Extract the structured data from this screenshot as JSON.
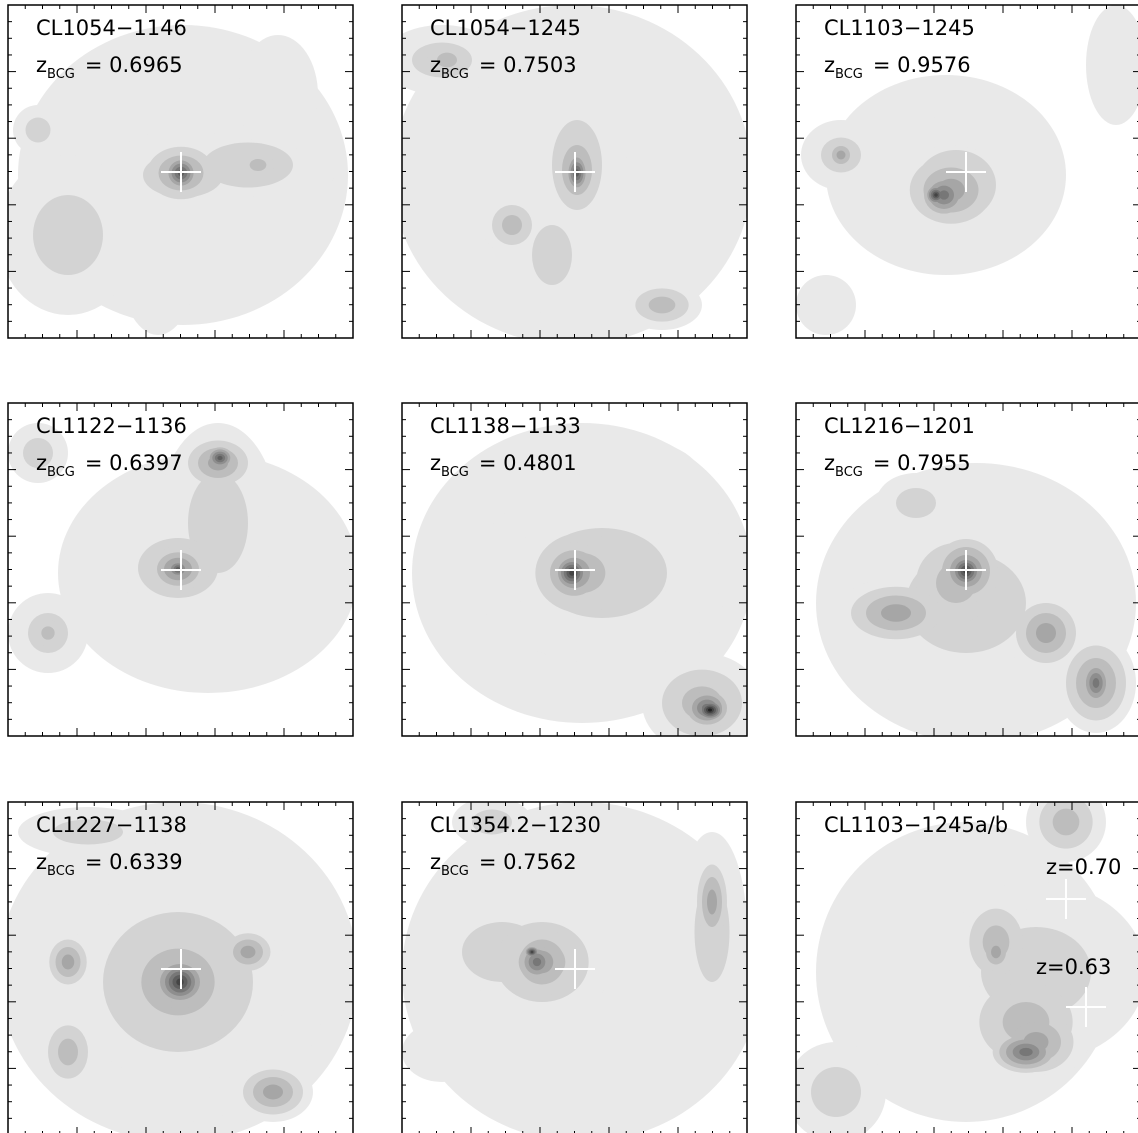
{
  "panels": [
    {
      "title": "CL1054−1146",
      "z": "z",
      "z_sub": "BCG",
      "z_value": "= 0.6965"
    },
    {
      "title": "CL1054−1245",
      "z": "z",
      "z_sub": "BCG",
      "z_value": "= 0.7503"
    },
    {
      "title": "CL1103−1245",
      "z": "z",
      "z_sub": "BCG",
      "z_value": "= 0.9576"
    },
    {
      "title": "CL1122−1136",
      "z": "z",
      "z_sub": "BCG",
      "z_value": "= 0.6397"
    },
    {
      "title": "CL1138−1133",
      "z": "z",
      "z_sub": "BCG",
      "z_value": "= 0.4801"
    },
    {
      "title": "CL1216−1201",
      "z": "z",
      "z_sub": "BCG",
      "z_value": "= 0.7955"
    },
    {
      "title": "CL1227−1138",
      "z": "z",
      "z_sub": "BCG",
      "z_value": "= 0.6339"
    },
    {
      "title": "CL1354.2−1230",
      "z": "z",
      "z_sub": "BCG",
      "z_value": "= 0.7562"
    },
    {
      "title": "CL1103−1245a/b",
      "annotations": [
        "z=0.70",
        "z=0.63"
      ]
    }
  ]
}
